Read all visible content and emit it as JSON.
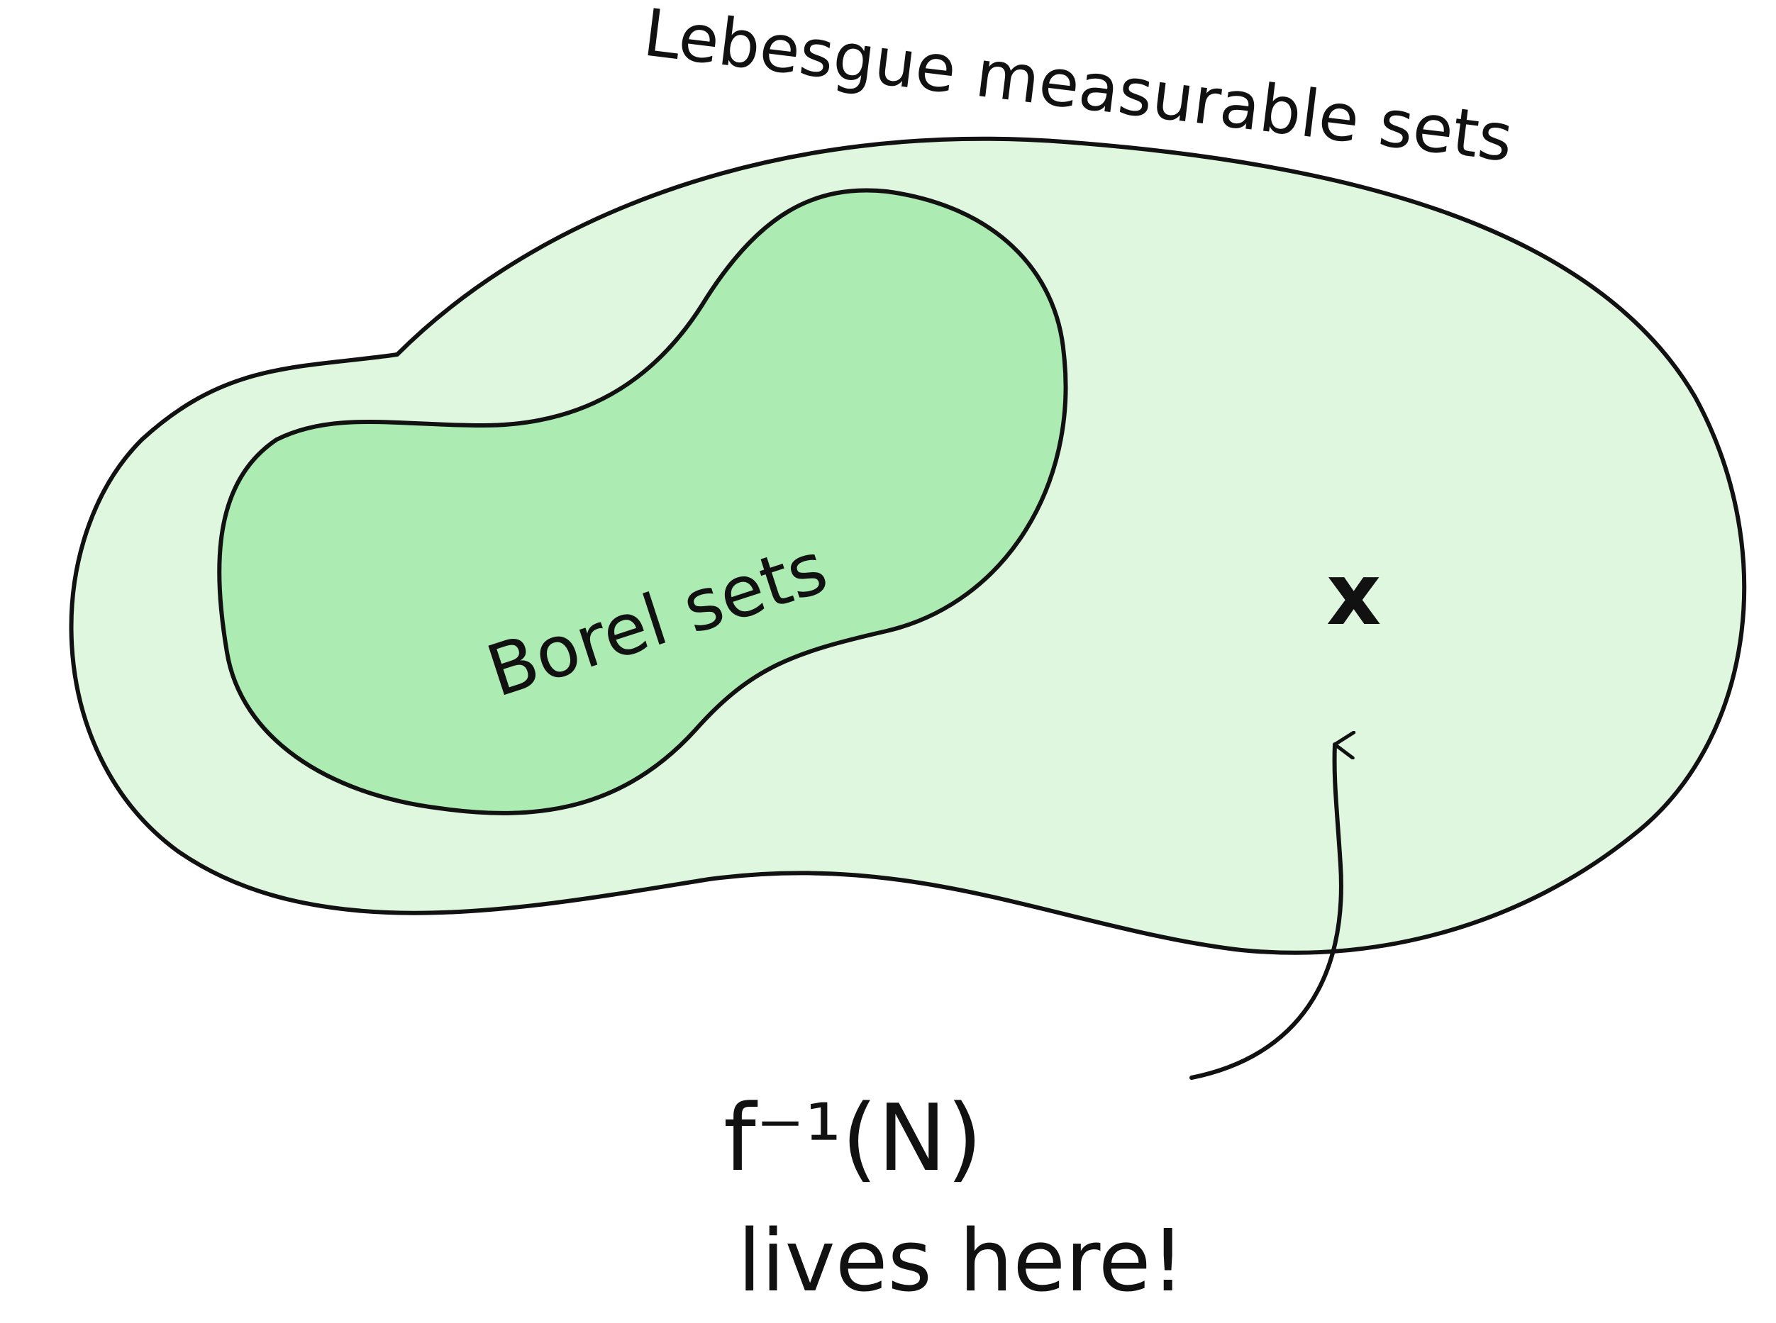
{
  "diagram": {
    "outer_set": {
      "label": "Lebesgue measurable sets",
      "fill": "#dff6df",
      "stroke": "#111111"
    },
    "inner_set": {
      "label": "Borel sets",
      "fill": "#acebb2",
      "stroke": "#111111"
    },
    "point_marker": {
      "glyph": "x"
    },
    "annotation": {
      "formula": "f⁻¹(N)",
      "caption": "lives here!"
    },
    "colors": {
      "background": "#ffffff",
      "ink": "#111111"
    }
  }
}
